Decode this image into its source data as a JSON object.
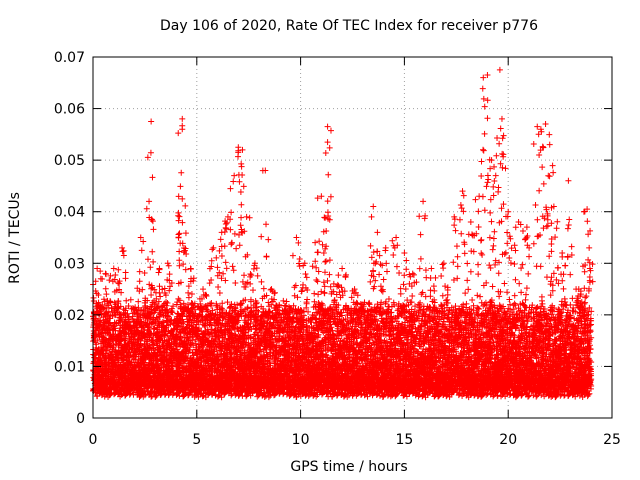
{
  "chart_data": {
    "type": "scatter",
    "title": "Day 106 of 2020, Rate Of TEC Index for receiver p776",
    "xlabel": "GPS time / hours",
    "ylabel": "ROTI / TECUs",
    "xlim": [
      0,
      25
    ],
    "ylim": [
      0,
      0.07
    ],
    "x_ticks": [
      "0",
      "5",
      "10",
      "15",
      "20",
      "25"
    ],
    "y_ticks": [
      "0",
      "0.01",
      "0.02",
      "0.03",
      "0.04",
      "0.05",
      "0.06",
      "0.07"
    ],
    "grid": true,
    "legend": "none",
    "marker": "+",
    "color": "#ff0000",
    "point_count_estimate": 12000,
    "baseline_band": {
      "x_range": [
        0,
        24
      ],
      "y_low": 0.004,
      "y_high": 0.02
    },
    "peaks": [
      {
        "x": 0.2,
        "y": 0.029
      },
      {
        "x": 0.6,
        "y": 0.028
      },
      {
        "x": 1.0,
        "y": 0.029
      },
      {
        "x": 1.4,
        "y": 0.033
      },
      {
        "x": 2.3,
        "y": 0.035
      },
      {
        "x": 2.7,
        "y": 0.042
      },
      {
        "x": 2.8,
        "y": 0.0575
      },
      {
        "x": 3.2,
        "y": 0.029
      },
      {
        "x": 3.6,
        "y": 0.03
      },
      {
        "x": 4.3,
        "y": 0.058
      },
      {
        "x": 4.3,
        "y": 0.056
      },
      {
        "x": 4.3,
        "y": 0.0425
      },
      {
        "x": 4.7,
        "y": 0.029
      },
      {
        "x": 5.3,
        "y": 0.025
      },
      {
        "x": 5.8,
        "y": 0.033
      },
      {
        "x": 6.2,
        "y": 0.036
      },
      {
        "x": 6.5,
        "y": 0.039
      },
      {
        "x": 6.8,
        "y": 0.047
      },
      {
        "x": 7.0,
        "y": 0.0525
      },
      {
        "x": 7.2,
        "y": 0.052
      },
      {
        "x": 7.4,
        "y": 0.039
      },
      {
        "x": 7.8,
        "y": 0.03
      },
      {
        "x": 8.3,
        "y": 0.048
      },
      {
        "x": 8.6,
        "y": 0.025
      },
      {
        "x": 9.3,
        "y": 0.021
      },
      {
        "x": 9.8,
        "y": 0.035
      },
      {
        "x": 10.2,
        "y": 0.03
      },
      {
        "x": 10.7,
        "y": 0.034
      },
      {
        "x": 11.0,
        "y": 0.043
      },
      {
        "x": 11.3,
        "y": 0.0565
      },
      {
        "x": 11.3,
        "y": 0.0535
      },
      {
        "x": 11.6,
        "y": 0.026
      },
      {
        "x": 12.0,
        "y": 0.029
      },
      {
        "x": 12.6,
        "y": 0.025
      },
      {
        "x": 13.0,
        "y": 0.022
      },
      {
        "x": 13.5,
        "y": 0.041
      },
      {
        "x": 13.7,
        "y": 0.036
      },
      {
        "x": 14.1,
        "y": 0.033
      },
      {
        "x": 14.6,
        "y": 0.035
      },
      {
        "x": 15.0,
        "y": 0.032
      },
      {
        "x": 15.4,
        "y": 0.028
      },
      {
        "x": 15.9,
        "y": 0.042
      },
      {
        "x": 16.3,
        "y": 0.029
      },
      {
        "x": 16.9,
        "y": 0.03
      },
      {
        "x": 17.4,
        "y": 0.039
      },
      {
        "x": 17.8,
        "y": 0.044
      },
      {
        "x": 18.2,
        "y": 0.038
      },
      {
        "x": 18.6,
        "y": 0.043
      },
      {
        "x": 18.8,
        "y": 0.066
      },
      {
        "x": 19.0,
        "y": 0.0665
      },
      {
        "x": 19.2,
        "y": 0.05
      },
      {
        "x": 19.4,
        "y": 0.047
      },
      {
        "x": 19.6,
        "y": 0.0675
      },
      {
        "x": 19.7,
        "y": 0.058
      },
      {
        "x": 20.0,
        "y": 0.04
      },
      {
        "x": 20.5,
        "y": 0.038
      },
      {
        "x": 20.9,
        "y": 0.037
      },
      {
        "x": 21.4,
        "y": 0.0565
      },
      {
        "x": 21.6,
        "y": 0.0555
      },
      {
        "x": 21.8,
        "y": 0.057
      },
      {
        "x": 22.0,
        "y": 0.053
      },
      {
        "x": 22.2,
        "y": 0.041
      },
      {
        "x": 22.6,
        "y": 0.032
      },
      {
        "x": 22.9,
        "y": 0.046
      },
      {
        "x": 23.4,
        "y": 0.025
      },
      {
        "x": 23.8,
        "y": 0.0405
      },
      {
        "x": 23.9,
        "y": 0.033
      }
    ]
  }
}
